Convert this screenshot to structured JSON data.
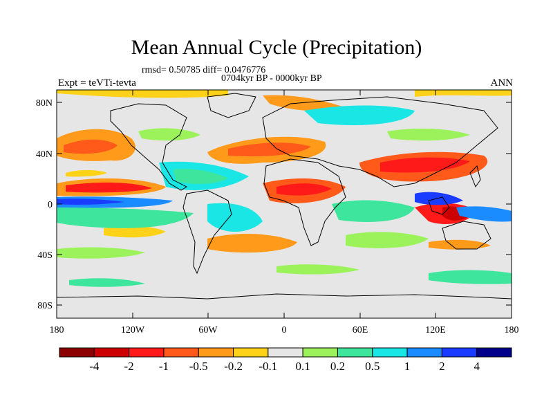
{
  "title": "Mean Annual Cycle (Precipitation)",
  "stats_line": "rmsd= 0.50785 diff= 0.0476776",
  "period_line": "0704kyr BP - 0000kyr BP",
  "experiment_label": "Expt = teVTi-tevta",
  "season_label": "ANN",
  "lat_ticks": [
    "80N",
    "40N",
    "0",
    "40S",
    "80S"
  ],
  "lon_ticks": [
    "180",
    "120W",
    "60W",
    "0",
    "60E",
    "120E",
    "180"
  ],
  "colorbar": {
    "colors": [
      "#8b0000",
      "#cc0000",
      "#ff1a1a",
      "#ff5a1a",
      "#ff9a1a",
      "#ffd21a",
      "#e6e6e6",
      "#9cf25a",
      "#3de69c",
      "#1ae6e6",
      "#1a8cff",
      "#1a3cff",
      "#00008b"
    ],
    "labels": [
      "-4",
      "-2",
      "-1",
      "-0.5",
      "-0.2",
      "-0.1",
      "0.1",
      "0.2",
      "0.5",
      "1",
      "2",
      "4"
    ]
  },
  "colors": {
    "background_field": "#e6e6e6",
    "coastline": "#000000"
  }
}
